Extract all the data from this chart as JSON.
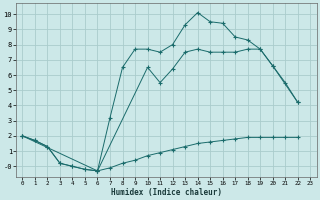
{
  "bg_color": "#cce8e8",
  "grid_color": "#aacccc",
  "line_color": "#1a6b6b",
  "xlabel": "Humidex (Indice chaleur)",
  "xlim": [
    -0.5,
    23.5
  ],
  "ylim": [
    -0.7,
    10.7
  ],
  "xticks": [
    0,
    1,
    2,
    3,
    4,
    5,
    6,
    7,
    8,
    9,
    10,
    11,
    12,
    13,
    14,
    15,
    16,
    17,
    18,
    19,
    20,
    21,
    22,
    23
  ],
  "yticks": [
    0,
    1,
    2,
    3,
    4,
    5,
    6,
    7,
    8,
    9,
    10
  ],
  "ytick_labels": [
    "-0",
    "1",
    "2",
    "3",
    "4",
    "5",
    "6",
    "7",
    "8",
    "9",
    "10"
  ],
  "line1_x": [
    0,
    1,
    2,
    3,
    4,
    5,
    6,
    7,
    8,
    9,
    10,
    11,
    12,
    13,
    14,
    15,
    16,
    17,
    18,
    19,
    20,
    21,
    22
  ],
  "line1_y": [
    2.0,
    1.7,
    1.3,
    0.2,
    0.0,
    -0.2,
    -0.3,
    -0.1,
    0.2,
    0.4,
    0.7,
    0.9,
    1.1,
    1.3,
    1.5,
    1.6,
    1.7,
    1.8,
    1.9,
    1.9,
    1.9,
    1.9,
    1.9
  ],
  "line2_x": [
    0,
    1,
    2,
    3,
    4,
    5,
    6,
    7,
    8,
    9,
    10,
    11,
    12,
    13,
    14,
    15,
    16,
    17,
    18,
    19,
    20,
    22
  ],
  "line2_y": [
    2.0,
    1.7,
    1.3,
    0.2,
    0.0,
    -0.2,
    -0.3,
    3.2,
    6.5,
    7.7,
    7.7,
    7.5,
    8.0,
    9.3,
    10.1,
    9.5,
    9.4,
    8.5,
    8.3,
    7.7,
    6.6,
    4.2
  ],
  "line3_x": [
    0,
    6,
    10,
    11,
    12,
    13,
    14,
    15,
    16,
    17,
    18,
    19,
    20,
    21,
    22
  ],
  "line3_y": [
    2.0,
    -0.3,
    6.5,
    5.5,
    6.4,
    7.5,
    7.7,
    7.5,
    7.5,
    7.5,
    7.7,
    7.7,
    6.6,
    5.5,
    4.2
  ]
}
